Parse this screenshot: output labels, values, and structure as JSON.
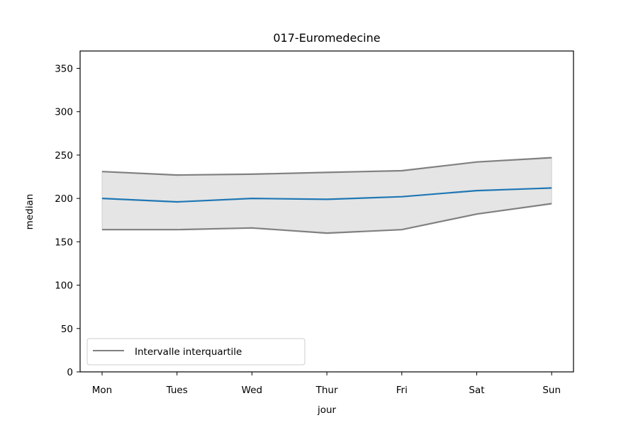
{
  "chart_data": {
    "type": "line",
    "title": "017-Euromedecine",
    "xlabel": "jour",
    "ylabel": "median",
    "categories": [
      "Mon",
      "Tues",
      "Wed",
      "Thur",
      "Fri",
      "Sat",
      "Sun"
    ],
    "ylim": [
      0,
      370
    ],
    "yticks": [
      0,
      50,
      100,
      150,
      200,
      250,
      300,
      350
    ],
    "median": [
      200,
      196,
      200,
      199,
      202,
      209,
      212
    ],
    "q1": [
      164,
      164,
      166,
      160,
      164,
      182,
      194
    ],
    "q3": [
      231,
      227,
      228,
      230,
      232,
      242,
      247
    ],
    "band_label": "Intervalle interquartile",
    "legend_position": "lower-left",
    "grid": false,
    "colors": {
      "median": "#1f77b4",
      "quartile_lines": "#808080",
      "band_fill": "#e5e5e5"
    }
  }
}
